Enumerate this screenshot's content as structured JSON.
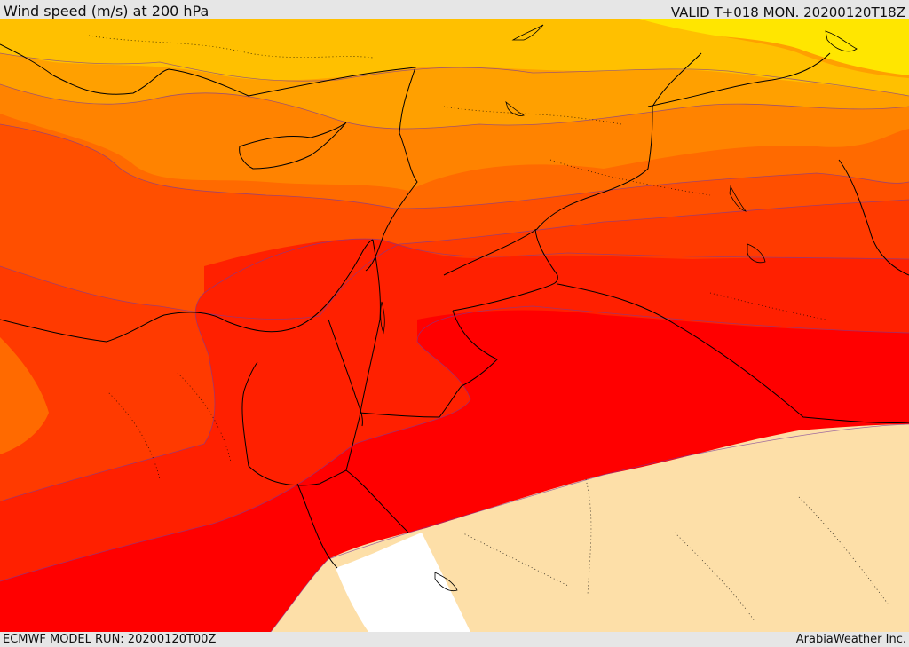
{
  "header": {
    "title": "Wind speed (m/s) at 200 hPa",
    "valid": "VALID T+018 MON. 20200120T18Z"
  },
  "footer": {
    "model_run": "ECMWF MODEL RUN: 20200120T00Z",
    "credit": "ArabiaWeather Inc."
  },
  "map": {
    "variable": "wind speed",
    "level_hpa": 200,
    "band_colors": {
      "yellow": "#ffe600",
      "light_orange": "#ffc000",
      "orange_1": "#ffa000",
      "orange_2": "#ff8300",
      "orange_3": "#ff6a00",
      "orange_red": "#ff4f00",
      "red_orange": "#ff3a00",
      "red_1": "#ff2000",
      "red_2": "#ff0000",
      "pale_tan": "#fddfa8",
      "white": "#ffffff"
    },
    "border_color": "#000000"
  }
}
